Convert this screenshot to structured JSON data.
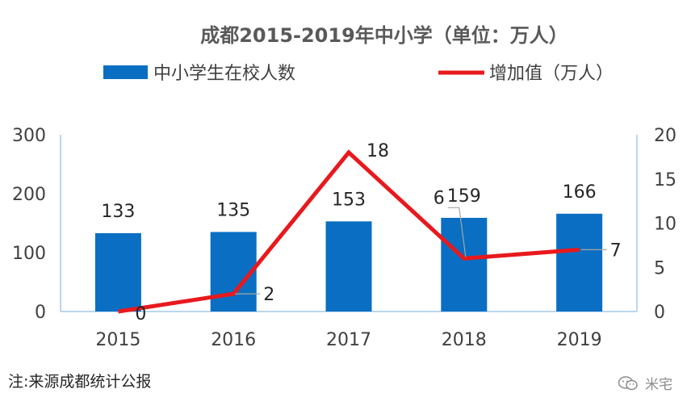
{
  "chart_data": {
    "type": "bar",
    "title": "成都2015-2019年中小学（单位：万人）",
    "categories": [
      "2015",
      "2016",
      "2017",
      "2018",
      "2019"
    ],
    "series": [
      {
        "name": "中小学生在校人数",
        "type": "bar",
        "axis": "left",
        "color": "#0a6fc2",
        "values": [
          133,
          135,
          153,
          159,
          166
        ]
      },
      {
        "name": "增加值（万人）",
        "type": "line",
        "axis": "right",
        "color": "#e8191d",
        "values": [
          0,
          2,
          18,
          6,
          7
        ]
      }
    ],
    "left_axis": {
      "ylim": [
        0,
        300
      ],
      "ticks": [
        "0",
        "100",
        "200",
        "300"
      ]
    },
    "right_axis": {
      "ylim": [
        0,
        20
      ],
      "ticks": [
        "0",
        "5",
        "10",
        "15",
        "20"
      ]
    },
    "legend": "top",
    "grid": false
  },
  "note": "注:来源成都统计公报",
  "watermark": "米宅"
}
